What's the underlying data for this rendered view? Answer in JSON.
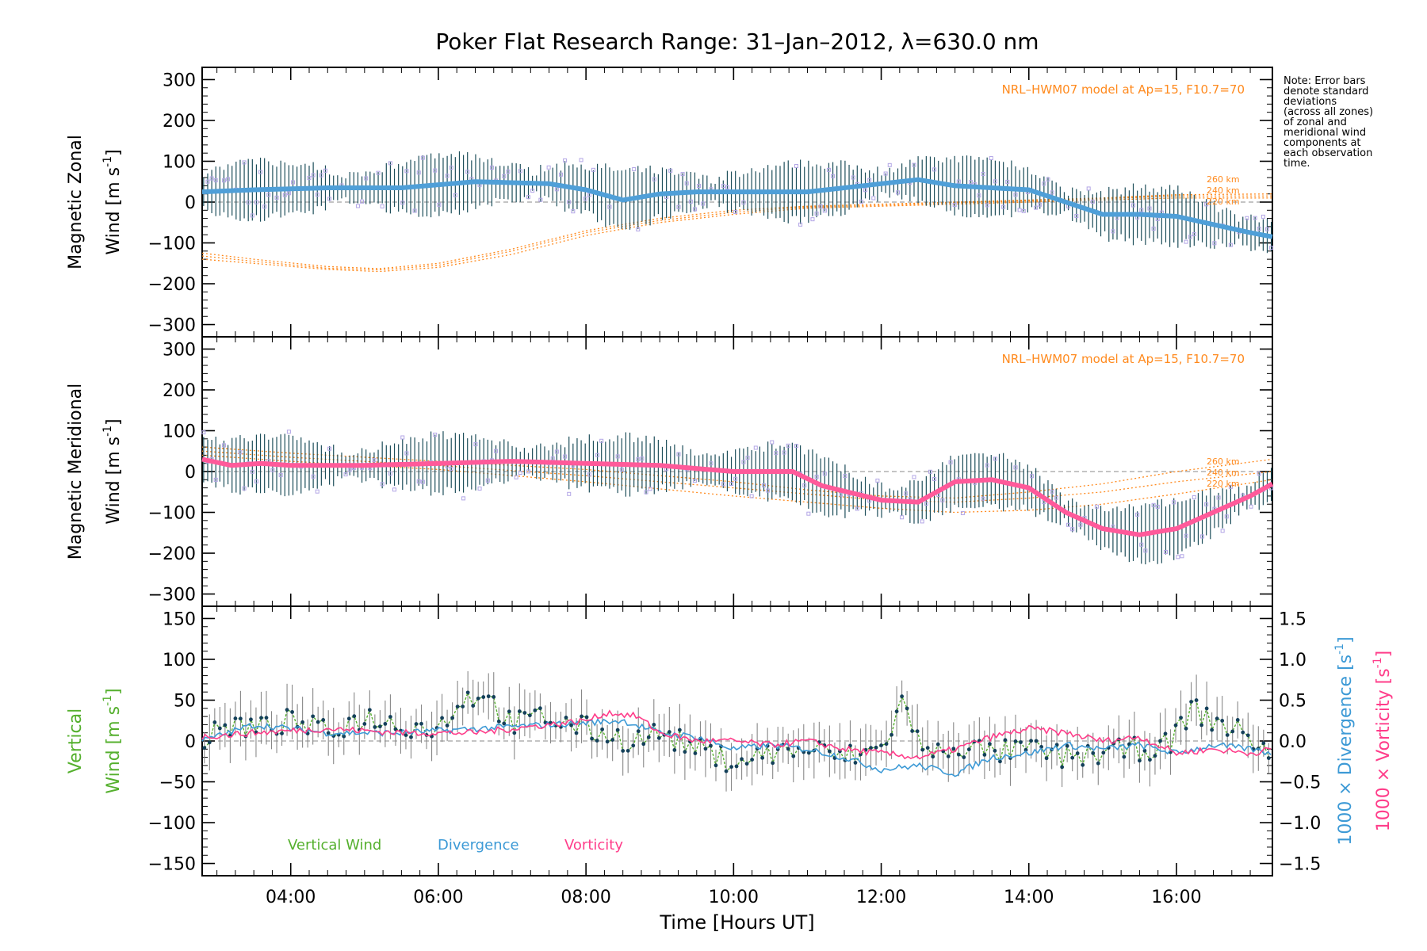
{
  "figure": {
    "title": "Poker Flat Research Range: 31–Jan–2012, λ=630.0 nm",
    "xlabel": "Time [Hours UT]",
    "note_lines": [
      "Note: Error bars",
      "denote standard",
      "deviations",
      "(across all zones)",
      "of zonal and",
      "meridional wind",
      "components at",
      "each observation",
      "time."
    ],
    "colors": {
      "zonal": "#4f9fd8",
      "meridional": "#ff5a9a",
      "vertical": "#55b02e",
      "divergence": "#3d9ad6",
      "vorticity": "#ff3d8a",
      "model": "#ff8a1e",
      "zones": "#b3a6e6",
      "errorbar": "#1d4e5a",
      "marker": "#14405a"
    }
  },
  "chart_data": [
    {
      "type": "line",
      "panel": "zonal",
      "ylabel_line1": "Magnetic Zonal",
      "ylabel_line2": "Wind [m s",
      "ylabel_sup": "-1",
      "ylabel_close": "]",
      "ylim": [
        -330,
        330
      ],
      "xlim": [
        2.8,
        17.3
      ],
      "xticks": [
        4,
        6,
        8,
        10,
        12,
        14,
        16
      ],
      "yticks": [
        -300,
        -200,
        -100,
        0,
        100,
        200,
        300
      ],
      "model_label": "NRL–HWM07 model at Ap=15, F10.7=70",
      "model_altitudes": [
        "260 km",
        "240 km",
        "220 km"
      ],
      "series": [
        {
          "name": "zonal-mean",
          "x": [
            2.8,
            3.5,
            4.5,
            5.5,
            6.5,
            7.5,
            8.0,
            8.5,
            9.0,
            9.5,
            10.0,
            10.5,
            11.0,
            11.5,
            12.0,
            12.5,
            13.0,
            13.5,
            14.0,
            14.5,
            15.0,
            15.5,
            16.0,
            16.5,
            17.0,
            17.3
          ],
          "y": [
            25,
            30,
            35,
            35,
            50,
            45,
            30,
            5,
            20,
            25,
            25,
            25,
            25,
            35,
            45,
            55,
            40,
            35,
            30,
            0,
            -30,
            -30,
            -35,
            -55,
            -75,
            -85
          ]
        }
      ],
      "model": [
        {
          "x": [
            2.8,
            3.5,
            4.5,
            5.2,
            6.0,
            7.0,
            8.0,
            9.0,
            10.0,
            11.0,
            12.0,
            13.0,
            14.0,
            15.0,
            16.0,
            17.3
          ],
          "y": [
            -125,
            -140,
            -158,
            -163,
            -150,
            -115,
            -70,
            -40,
            -20,
            -10,
            -5,
            0,
            5,
            10,
            18,
            20
          ]
        },
        {
          "x": [
            2.8,
            3.5,
            4.5,
            5.2,
            6.0,
            7.0,
            8.0,
            9.0,
            10.0,
            11.0,
            12.0,
            13.0,
            14.0,
            15.0,
            16.0,
            17.3
          ],
          "y": [
            -132,
            -145,
            -162,
            -166,
            -155,
            -120,
            -75,
            -45,
            -25,
            -12,
            -8,
            -2,
            3,
            8,
            15,
            15
          ]
        },
        {
          "x": [
            2.8,
            3.5,
            4.5,
            5.2,
            6.0,
            7.0,
            8.0,
            9.0,
            10.0,
            11.0,
            12.0,
            13.0,
            14.0,
            15.0,
            16.0,
            17.3
          ],
          "y": [
            -140,
            -150,
            -165,
            -170,
            -160,
            -128,
            -82,
            -50,
            -30,
            -15,
            -10,
            -5,
            0,
            5,
            10,
            10
          ]
        }
      ]
    },
    {
      "type": "line",
      "panel": "meridional",
      "ylabel_line1": "Magnetic Meridional",
      "ylabel_line2": "Wind [m s",
      "ylabel_sup": "-1",
      "ylabel_close": "]",
      "ylim": [
        -330,
        330
      ],
      "xlim": [
        2.8,
        17.3
      ],
      "xticks": [
        4,
        6,
        8,
        10,
        12,
        14,
        16
      ],
      "yticks": [
        -300,
        -200,
        -100,
        0,
        100,
        200,
        300
      ],
      "model_label": "NRL–HWM07 model at Ap=15, F10.7=70",
      "model_altitudes": [
        "260 km",
        "240 km",
        "220 km"
      ],
      "series": [
        {
          "name": "meridional-mean",
          "x": [
            2.8,
            3.2,
            3.6,
            4.0,
            5.0,
            6.0,
            7.0,
            8.0,
            9.0,
            10.0,
            10.8,
            11.2,
            12.0,
            12.5,
            13.0,
            13.5,
            14.0,
            14.5,
            15.0,
            15.5,
            16.0,
            16.5,
            17.0,
            17.3
          ],
          "y": [
            30,
            15,
            20,
            15,
            15,
            20,
            25,
            20,
            15,
            0,
            0,
            -35,
            -70,
            -75,
            -25,
            -20,
            -40,
            -100,
            -140,
            -155,
            -140,
            -100,
            -60,
            -30
          ]
        }
      ],
      "model": [
        {
          "x": [
            2.8,
            4,
            6,
            8,
            10,
            11,
            12,
            13,
            14,
            15,
            16,
            17.3
          ],
          "y": [
            60,
            45,
            25,
            5,
            -25,
            -45,
            -60,
            -65,
            -50,
            -30,
            0,
            30
          ]
        },
        {
          "x": [
            2.8,
            4,
            6,
            8,
            10,
            11,
            12,
            13,
            14,
            15,
            16,
            17.3
          ],
          "y": [
            50,
            35,
            15,
            -10,
            -40,
            -55,
            -70,
            -75,
            -65,
            -50,
            -25,
            0
          ]
        },
        {
          "x": [
            2.8,
            4,
            6,
            8,
            10,
            11,
            12,
            13,
            14,
            15,
            16,
            17.3
          ],
          "y": [
            40,
            25,
            5,
            -25,
            -60,
            -75,
            -90,
            -100,
            -95,
            -80,
            -55,
            -20
          ]
        }
      ]
    },
    {
      "type": "line",
      "panel": "vertical",
      "ylabel_line1": "Vertical",
      "ylabel_line2": "Wind [m s",
      "ylabel_sup": "-1",
      "ylabel_close": "]",
      "ylim": [
        -165,
        165
      ],
      "xlim": [
        2.8,
        17.3
      ],
      "xticks": [
        4,
        6,
        8,
        10,
        12,
        14,
        16
      ],
      "xtick_labels": [
        "04:00",
        "06:00",
        "08:00",
        "10:00",
        "12:00",
        "14:00",
        "16:00"
      ],
      "yticks": [
        -150,
        -100,
        -50,
        0,
        50,
        100,
        150
      ],
      "y2lim": [
        -1.65,
        1.65
      ],
      "y2ticks": [
        -1.5,
        -1.0,
        -0.5,
        0.0,
        0.5,
        1.0,
        1.5
      ],
      "y2tick_labels": [
        "−1.5",
        "−1.0",
        "−0.5",
        "0.0",
        "0.5",
        "1.0",
        "1.5"
      ],
      "y2label_div": "1000 × Divergence [s",
      "y2label_vor": "1000 × Vorticity [s",
      "y2label_sup": "-1",
      "y2label_close": "]",
      "legend": [
        "Vertical Wind",
        "Divergence",
        "Vorticity"
      ],
      "series": [
        {
          "name": "Vertical Wind",
          "x": [
            2.8,
            3.2,
            3.6,
            4.0,
            4.5,
            5.0,
            5.5,
            6.0,
            6.3,
            6.6,
            7.0,
            7.4,
            7.8,
            8.2,
            8.6,
            9.0,
            9.5,
            10.0,
            10.5,
            11.0,
            11.5,
            12.0,
            12.3,
            12.6,
            13.0,
            13.5,
            14.0,
            14.5,
            15.0,
            15.5,
            15.9,
            16.2,
            16.5,
            17.0,
            17.3
          ],
          "y": [
            0,
            20,
            15,
            25,
            10,
            30,
            20,
            15,
            50,
            60,
            20,
            30,
            20,
            10,
            0,
            10,
            -10,
            -25,
            -15,
            -10,
            -20,
            -10,
            50,
            -20,
            -5,
            -15,
            -10,
            -20,
            -15,
            -10,
            -5,
            40,
            25,
            5,
            -20
          ]
        },
        {
          "name": "Divergence",
          "x": [
            2.8,
            3.5,
            4.5,
            5.5,
            6.5,
            7.5,
            8.5,
            9.0,
            9.5,
            10.0,
            10.5,
            11.0,
            11.5,
            12.0,
            12.5,
            13.0,
            13.5,
            14.0,
            14.5,
            15.0,
            15.5,
            16.0,
            16.5,
            17.0,
            17.3
          ],
          "y": [
            0.0,
            0.2,
            0.1,
            0.1,
            0.15,
            0.2,
            0.25,
            0.1,
            0.05,
            -0.1,
            -0.05,
            -0.1,
            -0.2,
            -0.35,
            -0.3,
            -0.4,
            -0.2,
            -0.15,
            -0.05,
            -0.1,
            -0.05,
            -0.15,
            -0.05,
            -0.1,
            -0.15
          ]
        },
        {
          "name": "Vorticity",
          "x": [
            2.8,
            3.5,
            4.5,
            5.5,
            6.5,
            7.5,
            8.0,
            8.3,
            8.7,
            9.0,
            9.5,
            10.0,
            10.5,
            11.0,
            11.5,
            12.0,
            12.5,
            13.0,
            13.5,
            14.0,
            14.5,
            15.0,
            15.5,
            16.0,
            16.5,
            17.0,
            17.3
          ],
          "y": [
            0.05,
            0.1,
            0.15,
            0.1,
            0.1,
            0.2,
            0.25,
            0.35,
            0.3,
            0.1,
            0.0,
            0.0,
            -0.05,
            0.0,
            -0.1,
            -0.15,
            -0.2,
            -0.1,
            0.05,
            0.15,
            0.1,
            0.0,
            0.05,
            -0.15,
            -0.1,
            -0.15,
            -0.1
          ]
        }
      ]
    }
  ]
}
